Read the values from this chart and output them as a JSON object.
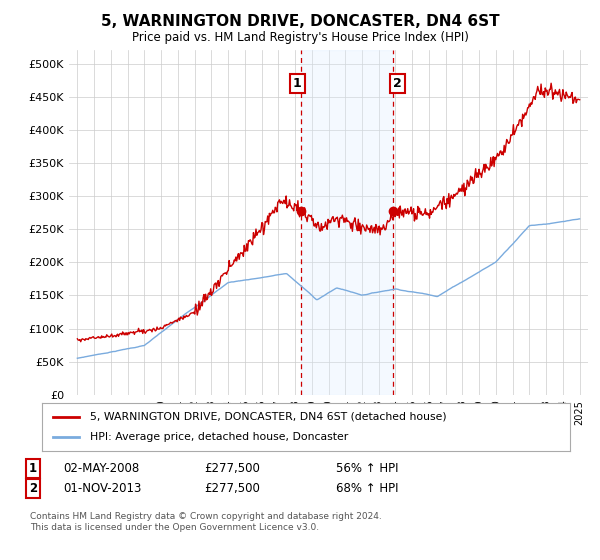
{
  "title": "5, WARNINGTON DRIVE, DONCASTER, DN4 6ST",
  "subtitle": "Price paid vs. HM Land Registry's House Price Index (HPI)",
  "legend_line1": "5, WARNINGTON DRIVE, DONCASTER, DN4 6ST (detached house)",
  "legend_line2": "HPI: Average price, detached house, Doncaster",
  "footnote": "Contains HM Land Registry data © Crown copyright and database right 2024.\nThis data is licensed under the Open Government Licence v3.0.",
  "annotation1": {
    "label": "1",
    "date": "02-MAY-2008",
    "price": "£277,500",
    "hpi": "56% ↑ HPI"
  },
  "annotation2": {
    "label": "2",
    "date": "01-NOV-2013",
    "price": "£277,500",
    "hpi": "68% ↑ HPI"
  },
  "marker1_x": 2008.33,
  "marker2_x": 2013.83,
  "marker1_y": 277500,
  "marker2_y": 277500,
  "shade_x1": 2008.33,
  "shade_x2": 2013.83,
  "red_color": "#cc0000",
  "blue_color": "#7aabde",
  "shade_color": "#ddeeff",
  "ylim": [
    0,
    520000
  ],
  "xlim": [
    1994.5,
    2025.5
  ],
  "yticks": [
    0,
    50000,
    100000,
    150000,
    200000,
    250000,
    300000,
    350000,
    400000,
    450000,
    500000
  ],
  "background_color": "#ffffff",
  "grid_color": "#cccccc"
}
